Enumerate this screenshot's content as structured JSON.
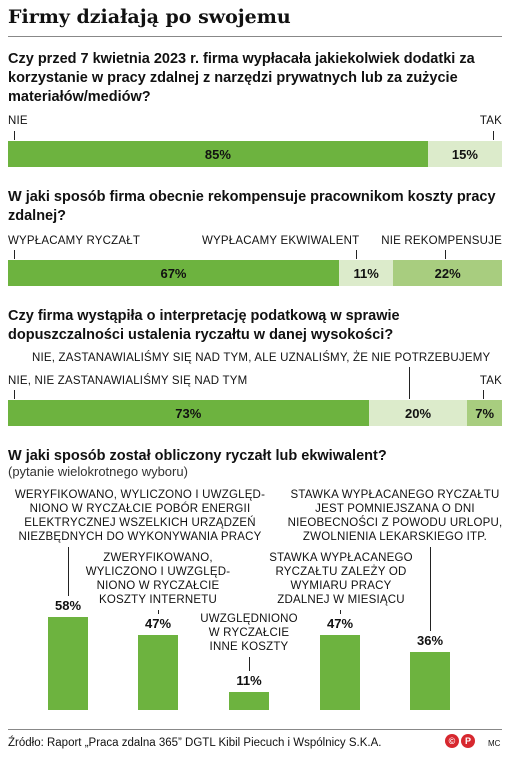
{
  "title": "Firmy działają po swojemu",
  "colors": {
    "dark_green": "#6db33f",
    "mid_green": "#a8cd7f",
    "light_green": "#dcebcb",
    "bar_green": "#6db33f"
  },
  "q1": {
    "question": "Czy przed 7 kwietnia 2023 r. firma wypłacała jakiekolwiek dodatki za korzystanie w pracy zdalnej z narzędzi prywatnych lub za zużycie materiałów/mediów?",
    "labels": [
      "NIE",
      "TAK"
    ],
    "values": [
      "85%",
      "15%"
    ]
  },
  "q2": {
    "question": "W jaki sposób firma obecnie rekompensuje pracownikom koszty pracy zdalnej?",
    "labels": [
      "WYPŁACAMY RYCZAŁT",
      "WYPŁACAMY EKWIWALENT",
      "NIE REKOMPENSUJE"
    ],
    "values": [
      "67%",
      "11%",
      "22%"
    ]
  },
  "q3": {
    "question": "Czy firma wystąpiła o interpretację podatkową w sprawie dopuszczalności ustalenia ryczałtu w danej wysokości?",
    "labels": [
      "NIE, NIE ZASTANAWIALIŚMY SIĘ NAD TYM",
      "NIE, ZASTANAWIALIŚMY SIĘ NAD TYM, ALE UZNALIŚMY, ŻE NIE POTRZEBUJEMY",
      "TAK"
    ],
    "values": [
      "73%",
      "20%",
      "7%"
    ]
  },
  "q4": {
    "question": "W jaki sposób został obliczony ryczałt lub ekwiwalent?",
    "note": "(pytanie wielokrotnego wyboru)"
  },
  "chart_data": [
    {
      "type": "bar",
      "orientation": "horizontal-stacked",
      "title": "Czy przed 7 kwietnia 2023 r. firma wypłacała jakiekolwiek dodatki za korzystanie w pracy zdalnej z narzędzi prywatnych lub za zużycie materiałów/mediów?",
      "categories": [
        "NIE",
        "TAK"
      ],
      "values": [
        85,
        15
      ]
    },
    {
      "type": "bar",
      "orientation": "horizontal-stacked",
      "title": "W jaki sposób firma obecnie rekompensuje pracownikom koszty pracy zdalnej?",
      "categories": [
        "WYPŁACAMY RYCZAŁT",
        "WYPŁACAMY EKWIWALENT",
        "NIE REKOMPENSUJE"
      ],
      "values": [
        67,
        11,
        22
      ]
    },
    {
      "type": "bar",
      "orientation": "horizontal-stacked",
      "title": "Czy firma wystąpiła o interpretację podatkową w sprawie dopuszczalności ustalenia ryczałtu w danej wysokości?",
      "categories": [
        "NIE, NIE ZASTANAWIALIŚMY SIĘ NAD TYM",
        "NIE, ZASTANAWIALIŚMY SIĘ NAD TYM, ALE UZNALIŚMY, ŻE NIE POTRZEBUJEMY",
        "TAK"
      ],
      "values": [
        73,
        20,
        7
      ]
    },
    {
      "type": "bar",
      "orientation": "vertical",
      "title": "W jaki sposób został obliczony ryczałt lub ekwiwalent?",
      "categories": [
        "WERYFIKOWANO, WYLICZONO I UWZGLĘDNIONO W RYCZAŁCIE POBÓR ENERGII ELEKTRYCZNEJ WSZELKICH URZĄDZEŃ NIEZBĘDNYCH DO WYKONYWANIA PRACY",
        "ZWERYFIKOWANO, WYLICZONO I UWZGLĘDNIONO W RYCZAŁCIE KOSZTY INTERNETU",
        "UWZGLĘDNIONO W RYCZAŁCIE INNE KOSZTY",
        "STAWKA WYPŁACANEGO RYCZAŁTU ZALEŻY OD WYMIARU PRACY ZDALNEJ W MIESIĄCU",
        "STAWKA WYPŁACANEGO RYCZAŁTU JEST POMNIEJSZANA O DNI NIEOBECNOŚCI Z POWODU URLOPU, ZWOLNIENIA LEKARSKIEGO ITP."
      ],
      "values": [
        58,
        47,
        11,
        47,
        36
      ],
      "labels": [
        "58%",
        "47%",
        "11%",
        "47%",
        "36%"
      ],
      "ann_lines": [
        [
          "WERYFIKOWANO, WYLICZONO I UWZGLĘD-",
          "NIONO W RYCZAŁCIE POBÓR ENERGII",
          "ELEKTRYCZNEJ WSZELKICH URZĄDZEŃ",
          "NIEZBĘDNYCH DO WYKONYWANIA PRACY"
        ],
        [
          "ZWERYFIKOWANO,",
          "WYLICZONO I UWZGLĘD-",
          "NIONO W RYCZAŁCIE",
          "KOSZTY INTERNETU"
        ],
        [
          "UWZGLĘDNIONO",
          "W RYCZAŁCIE",
          "INNE KOSZTY"
        ],
        [
          "STAWKA WYPŁACANEGO",
          "RYCZAŁTU ZALEŻY OD",
          "WYMIARU PRACY",
          "ZDALNEJ W MIESIĄCU"
        ],
        [
          "STAWKA WYPŁACANEGO RYCZAŁTU",
          "JEST POMNIEJSZANA O DNI",
          "NIEOBECNOŚCI Z POWODU URLOPU,",
          "ZWOLNIENIA LEKARSKIEGO ITP."
        ]
      ]
    }
  ],
  "source": "Źródło: Raport „Praca zdalna 365” DGTL Kibil Piecuch i Wspólnicy S.K.A.",
  "logo_text": [
    "©",
    "P"
  ],
  "credit": "MC"
}
